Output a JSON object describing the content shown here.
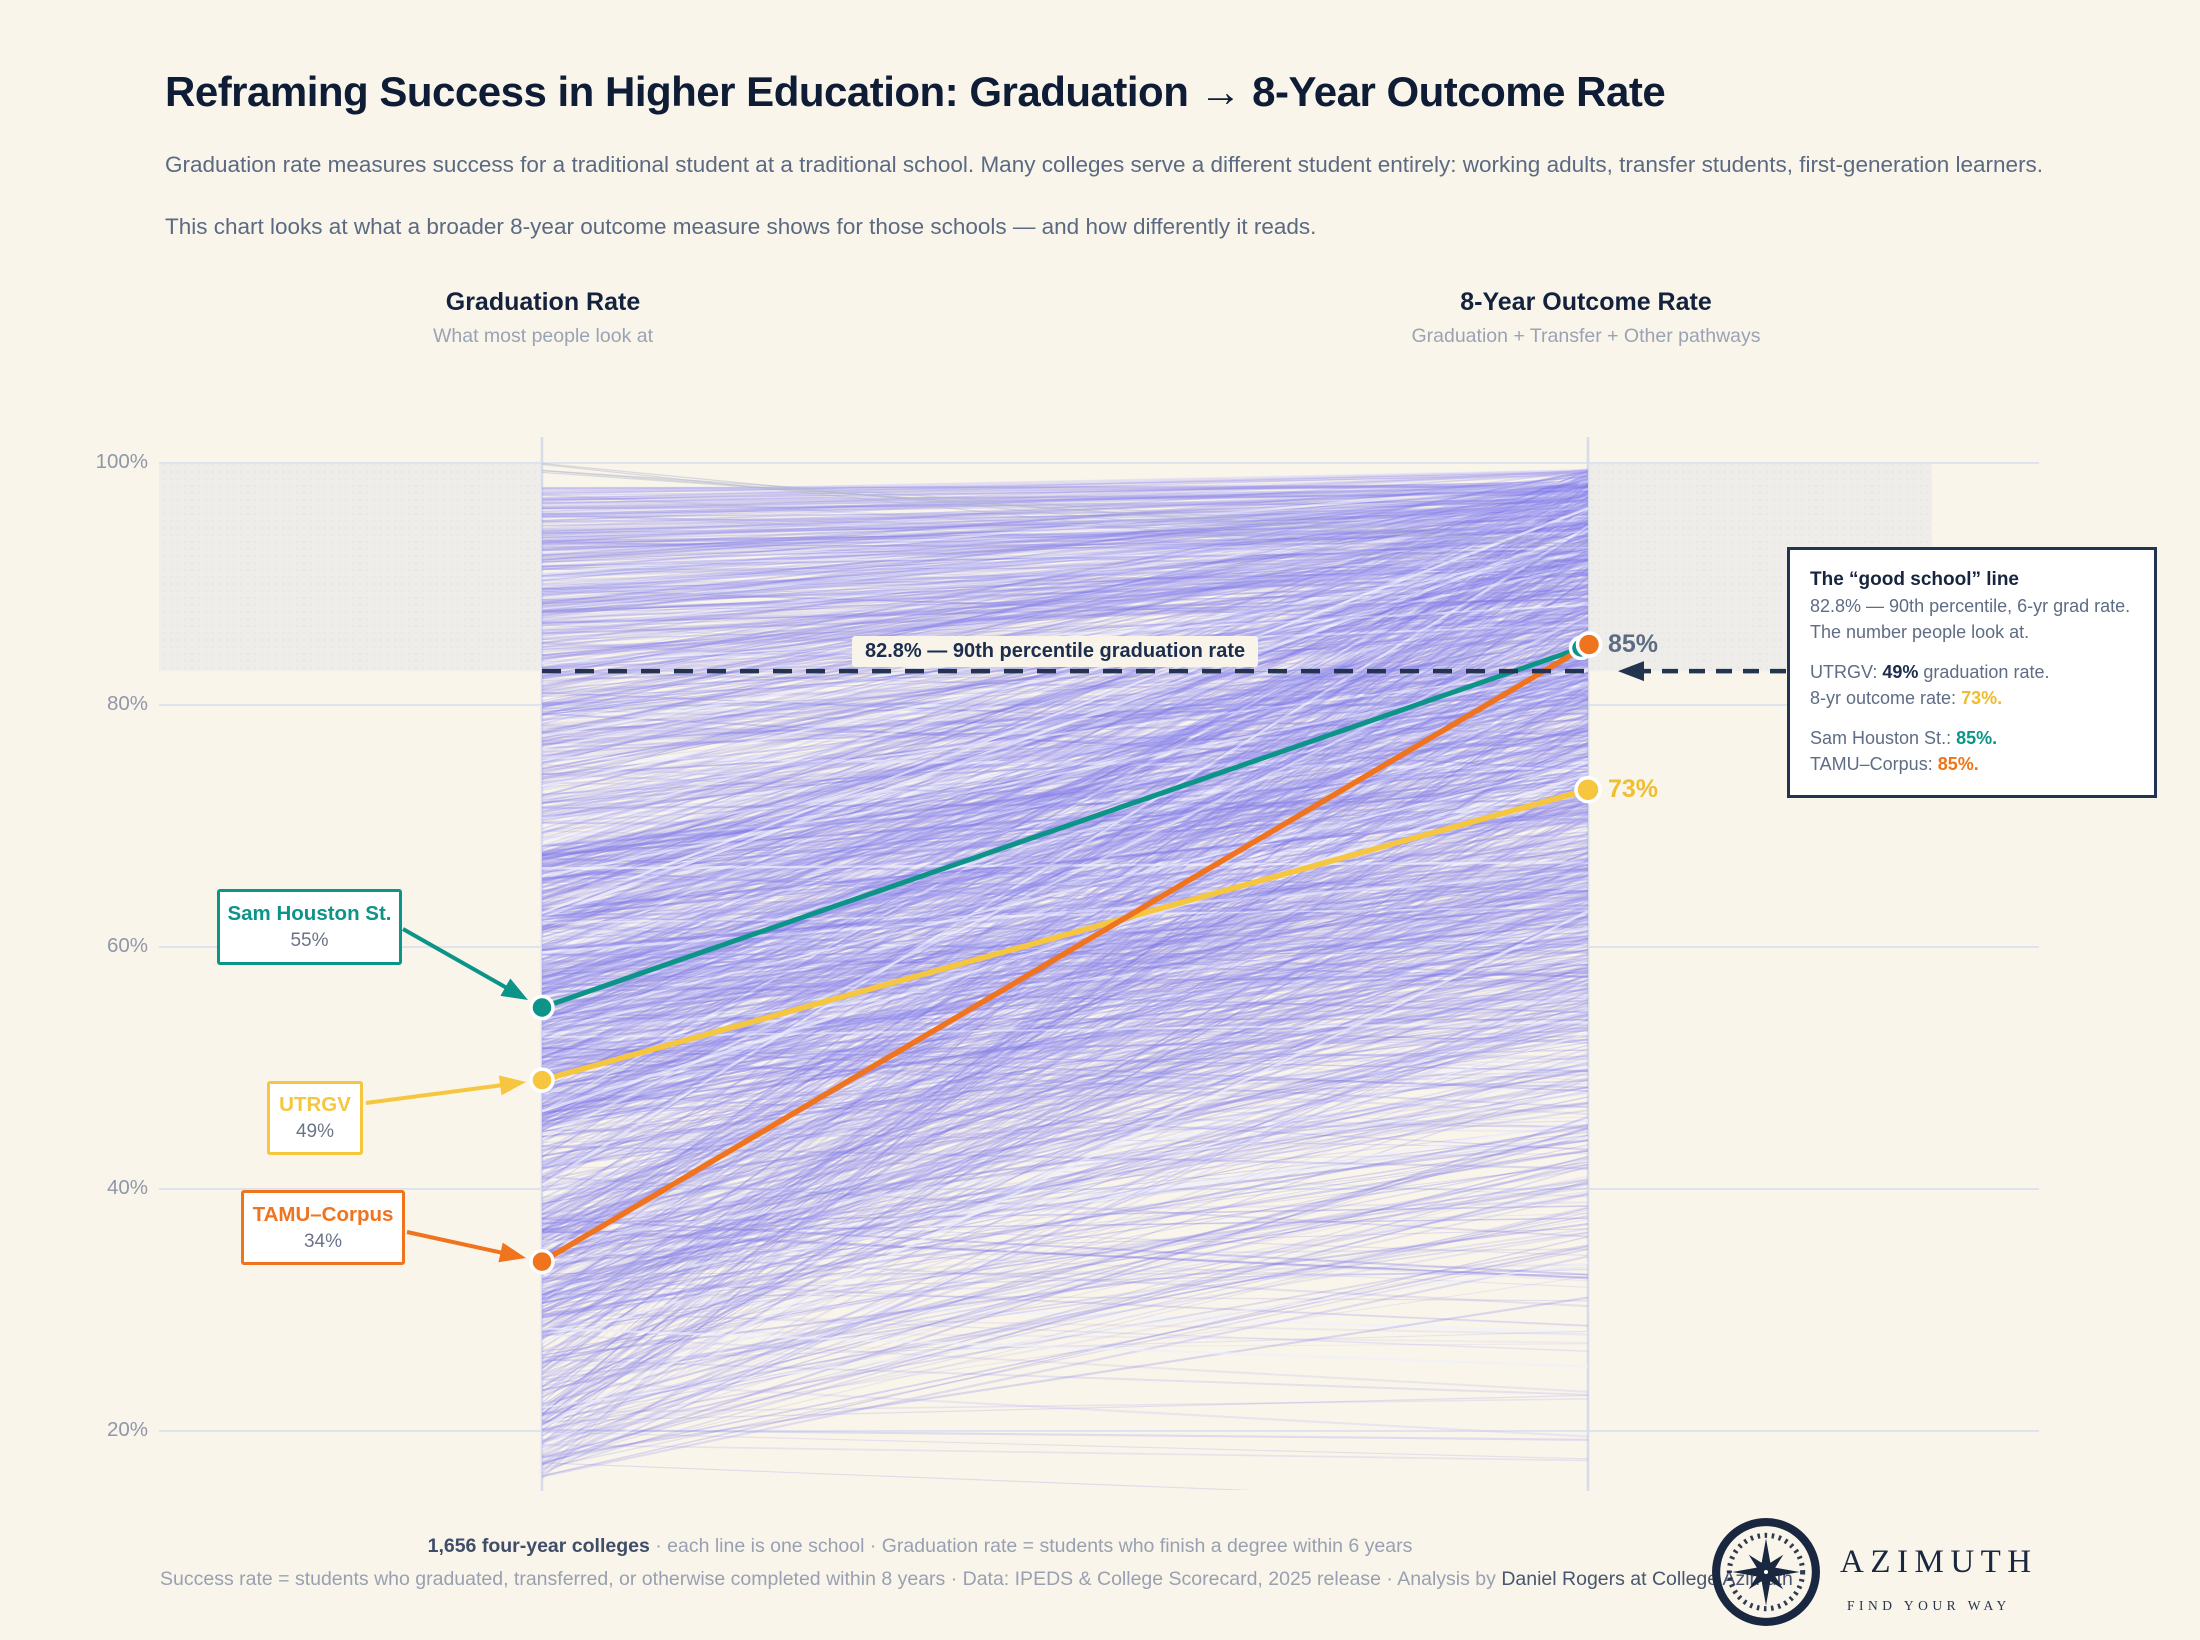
{
  "page": {
    "title": "Reframing Success in Higher Education: Graduation → 8-Year Outcome Rate",
    "subtitle1": "Graduation rate measures success for a traditional student at a traditional school. Many colleges serve a different student entirely: working adults, transfer students, first-generation learners.",
    "subtitle2": "This chart looks at what a broader 8-year outcome measure shows for those schools — and how differently it reads."
  },
  "columns": {
    "left": {
      "title": "Graduation Rate",
      "subtitle": "What most people look at"
    },
    "right": {
      "title": "8-Year Outcome Rate",
      "subtitle": "Graduation + Transfer + Other pathways"
    }
  },
  "chart_data": {
    "type": "slopegraph",
    "x_categories": [
      "Graduation Rate",
      "8-Year Outcome Rate"
    ],
    "axes": {
      "y_ticks": [
        "100%",
        "80%",
        "60%",
        "40%",
        "20%"
      ],
      "y_tick_values": [
        100,
        80,
        60,
        40,
        20
      ],
      "y_min": 20,
      "y_max": 100,
      "grid": true
    },
    "background_lines": {
      "count": 1656,
      "note": "each line is one school",
      "color": "#8b84ec"
    },
    "reference_line": {
      "value": 82.8,
      "label": "82.8% — 90th percentile graduation rate",
      "color": "#22344f"
    },
    "series": [
      {
        "name": "Sam Houston St.",
        "grad": 55,
        "grad_label": "55%",
        "outcome": 85,
        "outcome_label": "85%",
        "color": "#0d9488"
      },
      {
        "name": "UTRGV",
        "grad": 49,
        "grad_label": "49%",
        "outcome": 73,
        "outcome_label": "73%",
        "color": "#f5c63e"
      },
      {
        "name": "TAMU–Corpus",
        "grad": 34,
        "grad_label": "34%",
        "outcome": 85,
        "outcome_label": "85%",
        "color": "#f0731e"
      }
    ],
    "right_labels": [
      {
        "text": "85%",
        "value": 85,
        "color": "#5d6b84"
      },
      {
        "text": "73%",
        "value": 73,
        "color": "#f0be30"
      }
    ]
  },
  "annotation": {
    "title": "The “good school” line",
    "line1": "82.8% — 90th percentile, 6-yr grad rate.",
    "line2": "The number people look at.",
    "utrgv_prefix": "UTRGV: ",
    "utrgv_value": "49%",
    "utrgv_suffix": " graduation rate.",
    "outcome_prefix": "8-yr outcome rate: ",
    "outcome_value": "73%.",
    "sam_prefix": "Sam Houston St.: ",
    "sam_value": "85%.",
    "tamu_prefix": "TAMU–Corpus: ",
    "tamu_value": "85%."
  },
  "footer": {
    "line1_bold": "1,656 four-year colleges",
    "line1_rest": " · each line is one school · Graduation rate = students who finish a degree within 6 years",
    "line2_rest": "Success rate = students who graduated, transferred, or otherwise completed within 8 years · Data: IPEDS & College Scorecard, 2025 release · Analysis by ",
    "line2_emph": "Daniel Rogers at College Azimuth"
  },
  "logo": {
    "brand": "AZIMUTH",
    "tagline": "FIND YOUR WAY"
  }
}
